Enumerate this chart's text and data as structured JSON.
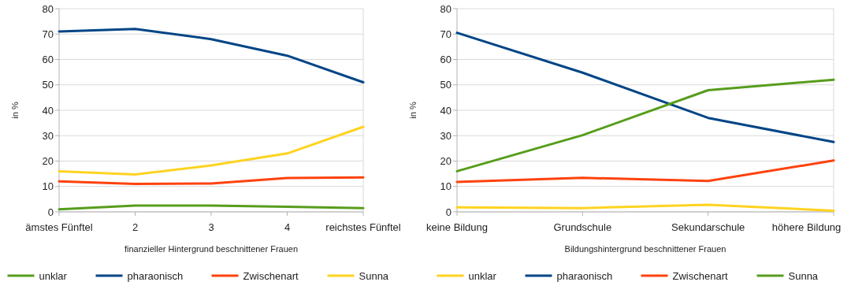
{
  "chart_data": [
    {
      "type": "line",
      "xlabel": "finanzieller Hintergrund beschnittener Frauen",
      "ylabel": "in %",
      "categories": [
        "ämstes Fünftel",
        "2",
        "3",
        "4",
        "reichstes Fünftel"
      ],
      "ylim": [
        0,
        80
      ],
      "yticks": [
        0,
        10,
        20,
        30,
        40,
        50,
        60,
        70,
        80
      ],
      "grid": "y",
      "legend": "bottom",
      "series": [
        {
          "name": "unklar",
          "color": "#579d1c",
          "values": [
            1,
            2.5,
            2.5,
            2,
            1.5
          ]
        },
        {
          "name": "pharaonisch",
          "color": "#004586",
          "values": [
            71,
            72,
            68,
            61.5,
            51
          ]
        },
        {
          "name": "Zwischenart",
          "color": "#ff420e",
          "values": [
            12,
            11,
            11.2,
            13.3,
            13.6
          ]
        },
        {
          "name": "Sunna",
          "color": "#ffd320",
          "values": [
            16,
            14.7,
            18.3,
            23,
            33.5
          ]
        }
      ]
    },
    {
      "type": "line",
      "xlabel": "Bildungshintergrund beschnittener Frauen",
      "ylabel": "in %",
      "categories": [
        "keine Bildung",
        "Grundschule",
        "Sekundarschule",
        "höhere Bildung"
      ],
      "ylim": [
        0,
        80
      ],
      "yticks": [
        0,
        10,
        20,
        30,
        40,
        50,
        60,
        70,
        80
      ],
      "grid": "y",
      "legend": "bottom",
      "series": [
        {
          "name": "unklar",
          "color": "#ffd320",
          "values": [
            1.8,
            1.5,
            2.8,
            0.5
          ]
        },
        {
          "name": "pharaonisch",
          "color": "#004586",
          "values": [
            70.5,
            54.8,
            37,
            27.5
          ]
        },
        {
          "name": "Zwischenart",
          "color": "#ff420e",
          "values": [
            11.8,
            13.4,
            12.2,
            20.2
          ]
        },
        {
          "name": "Sunna",
          "color": "#579d1c",
          "values": [
            16,
            30.2,
            47.9,
            52
          ]
        }
      ]
    }
  ]
}
